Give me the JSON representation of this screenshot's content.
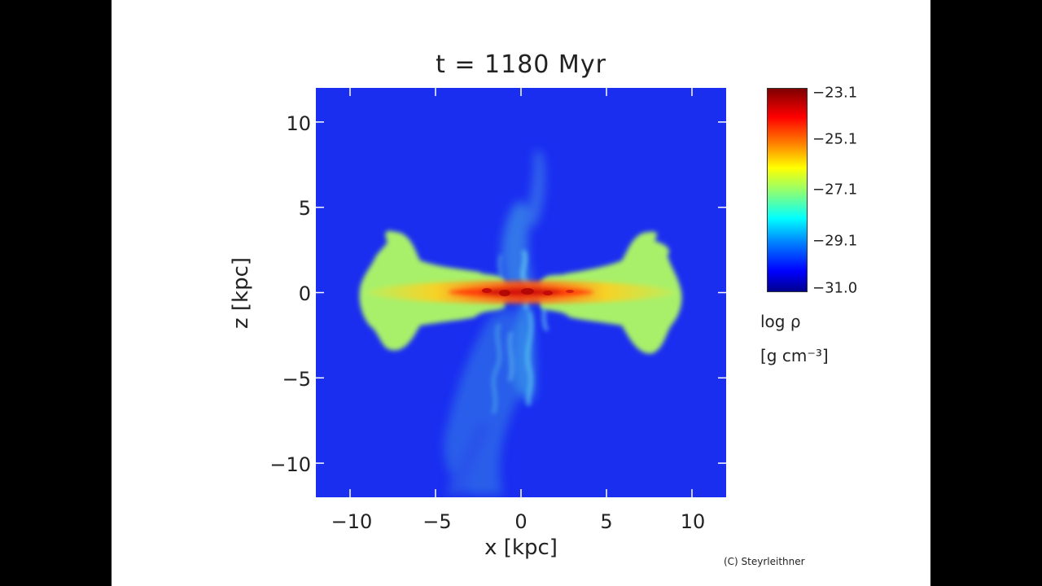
{
  "chart_data": {
    "type": "heatmap",
    "title": "t = 1180 Myr",
    "xlabel": "x [kpc]",
    "ylabel": "z [kpc]",
    "xlim": [
      -12,
      12
    ],
    "ylim": [
      -12,
      12
    ],
    "xticks": [
      -10,
      -5,
      0,
      5,
      10
    ],
    "yticks": [
      10,
      5,
      0,
      -5,
      -10
    ],
    "xtick_labels": [
      "−10",
      "−5",
      "0",
      "5",
      "10"
    ],
    "ytick_labels": [
      "10",
      "5",
      "0",
      "−5",
      "−10"
    ],
    "colorbar": {
      "label_line1": "log ρ",
      "label_line2": "[g cm⁻³]",
      "ticks": [
        -23.1,
        -25.1,
        -27.1,
        -29.1,
        -31.0
      ],
      "tick_labels": [
        "−23.1",
        "−25.1",
        "−27.1",
        "−29.1",
        "−31.0"
      ],
      "range": [
        -31.0,
        -23.1
      ],
      "colormap": "jet"
    },
    "credit": "(C) Steyrleithner"
  },
  "colors": {
    "background_field": "#1a2ef0",
    "outflow_lobe": "#a8f06a",
    "disk_core": "#e0180c",
    "turbulent_gas": "#4aa6e8"
  }
}
